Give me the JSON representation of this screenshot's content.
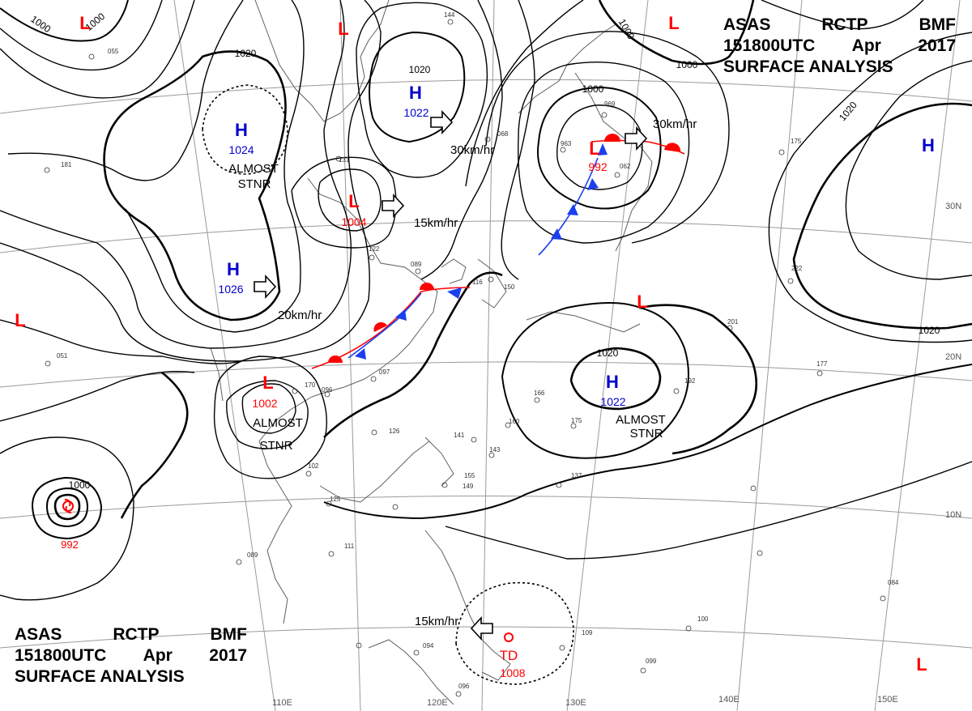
{
  "header": {
    "agency": "ASAS",
    "station": "RCTP",
    "office": "BMF",
    "time": "151800UTC",
    "month": "Apr",
    "year": "2017",
    "title": "SURFACE ANALYSIS"
  },
  "pressure_systems": [
    {
      "type": "H",
      "pressure": "1022",
      "color": "#0000cc"
    },
    {
      "type": "H",
      "pressure": "1024",
      "color": "#0000cc"
    },
    {
      "type": "H",
      "pressure": "1026",
      "color": "#0000cc"
    },
    {
      "type": "H",
      "pressure": "1022",
      "color": "#0000cc"
    },
    {
      "type": "H",
      "pressure": "",
      "color": "#0000cc"
    },
    {
      "type": "L",
      "pressure": "1004",
      "color": "#ff0000"
    },
    {
      "type": "L",
      "pressure": "992",
      "color": "#ff0000"
    },
    {
      "type": "L",
      "pressure": "1002",
      "color": "#ff0000"
    },
    {
      "type": "L",
      "pressure": "",
      "color": "#ff0000"
    },
    {
      "type": "L",
      "pressure": "",
      "color": "#ff0000"
    },
    {
      "type": "L",
      "pressure": "",
      "color": "#ff0000"
    },
    {
      "type": "L",
      "pressure": "",
      "color": "#ff0000"
    },
    {
      "type": "L",
      "pressure": "",
      "color": "#ff0000"
    },
    {
      "type": "TD",
      "pressure": "1008",
      "color": "#ff0000"
    },
    {
      "type": "TS",
      "pressure": "992",
      "color": "#ff0000"
    }
  ],
  "movement_labels": [
    "30km/hr",
    "15km/hr",
    "20km/hr",
    "30km/hr",
    "15km/hr"
  ],
  "status_labels": [
    "ALMOST",
    "STNR",
    "ALMOST",
    "STNR",
    "ALMOST",
    "STNR"
  ],
  "isobar_labels": [
    "1000",
    "1000",
    "1020",
    "1020",
    "1000",
    "1000",
    "1000",
    "1020",
    "1020",
    "1000",
    "1020"
  ],
  "latitude_labels": [
    "30N",
    "20N",
    "10N"
  ],
  "longitude_labels": [
    "110E",
    "120E",
    "130E",
    "140E",
    "150E"
  ],
  "station_values": [
    "144",
    "131",
    "122",
    "089",
    "116",
    "150",
    "097",
    "096",
    "141",
    "143",
    "155",
    "149",
    "166",
    "160",
    "175",
    "137",
    "192",
    "177",
    "201",
    "222",
    "175",
    "068",
    "963",
    "969",
    "062",
    "181",
    "170",
    "102",
    "111",
    "089",
    "094",
    "109",
    "100",
    "099",
    "084",
    "096",
    "055",
    "126",
    "125",
    "051"
  ],
  "colors": {
    "high": "#0000cc",
    "low": "#ff0000",
    "isobar": "#000000",
    "grid": "#9a9a9a",
    "coast": "#606060",
    "cold_front": "#1a3ff0",
    "warm_front": "#ff0000"
  }
}
